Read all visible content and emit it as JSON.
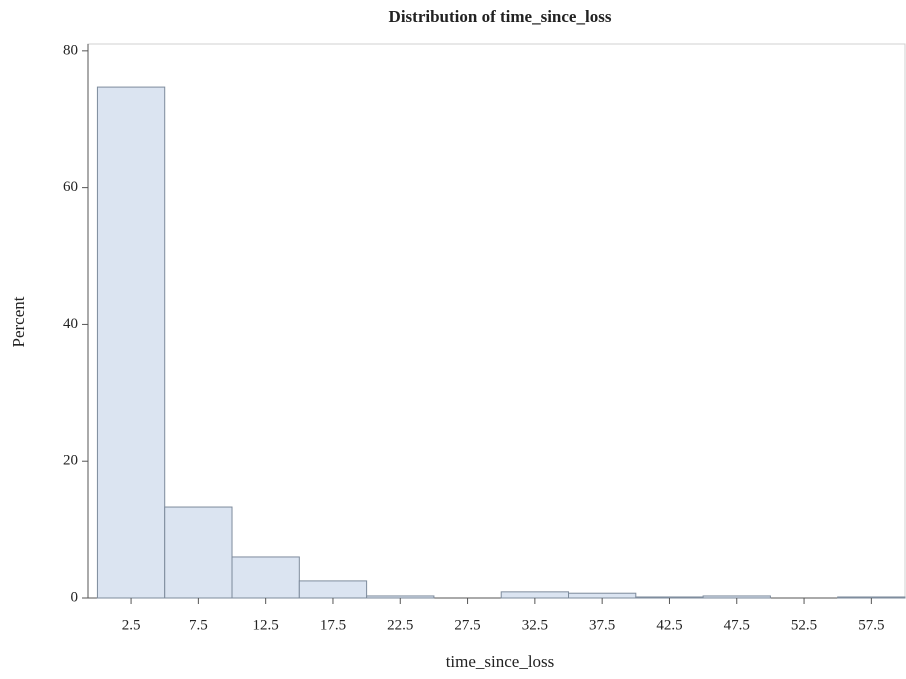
{
  "chart_data": {
    "type": "histogram",
    "title": "Distribution of time_since_loss",
    "x_label": "time_since_loss",
    "y_label": "Percent",
    "bins": [
      0,
      5,
      10,
      15,
      20,
      25,
      30,
      35,
      40,
      45,
      50,
      55,
      60
    ],
    "values": [
      74.7,
      13.3,
      6.0,
      2.5,
      0.3,
      0,
      0.9,
      0.7,
      0.15,
      0.3,
      0,
      0.15
    ],
    "color": "#dbe4f1",
    "xlim": [
      -0.7,
      60
    ],
    "ylim": [
      0,
      81
    ],
    "xticks": [
      2.5,
      7.5,
      12.5,
      17.5,
      22.5,
      27.5,
      32.5,
      37.5,
      42.5,
      47.5,
      52.5,
      57.5
    ],
    "yticks": [
      0,
      20,
      40,
      60,
      80
    ],
    "grid": false
  }
}
